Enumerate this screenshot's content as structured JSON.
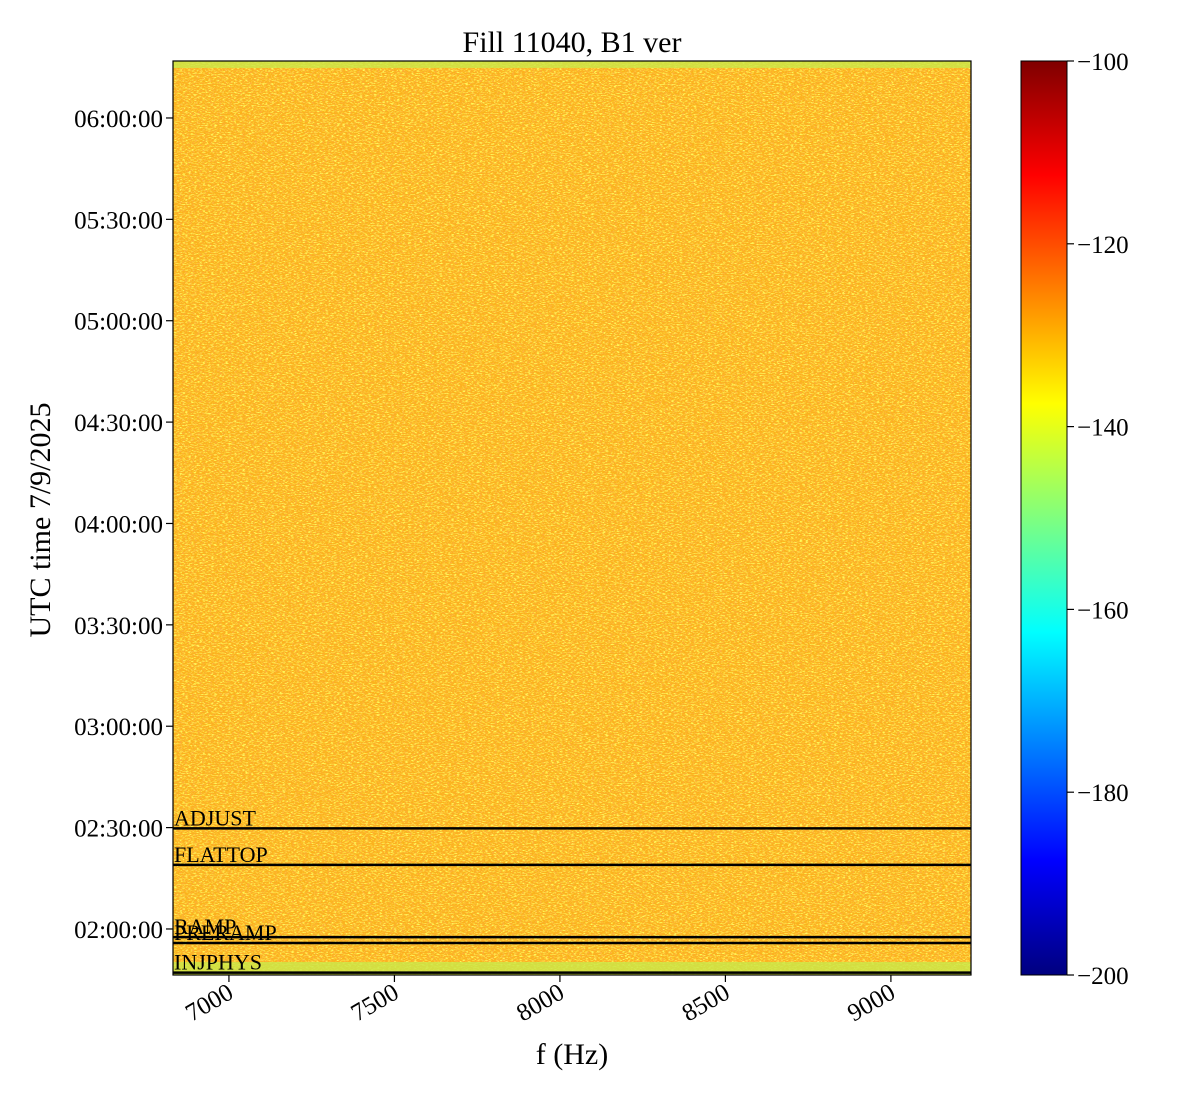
{
  "chart_data": {
    "type": "heatmap",
    "title": "Fill 11040, B1 ver",
    "x_label": "f (Hz)",
    "y_label": "UTC time 7/9/2025",
    "xlim": [
      6831,
      9242
    ],
    "xticks": [
      7000,
      7500,
      8000,
      8500,
      9000
    ],
    "ylim": [
      1.773,
      6.281
    ],
    "yticks": [
      {
        "value": 2.0,
        "label": "02:00:00"
      },
      {
        "value": 2.5,
        "label": "02:30:00"
      },
      {
        "value": 3.0,
        "label": "03:00:00"
      },
      {
        "value": 3.5,
        "label": "03:30:00"
      },
      {
        "value": 4.0,
        "label": "04:00:00"
      },
      {
        "value": 4.5,
        "label": "04:30:00"
      },
      {
        "value": 5.0,
        "label": "05:00:00"
      },
      {
        "value": 5.5,
        "label": "05:30:00"
      },
      {
        "value": 6.0,
        "label": "06:00:00"
      }
    ],
    "colormap": "jet",
    "clim": [
      -200,
      -100
    ],
    "cticks": [
      {
        "value": -200,
        "label": "−200"
      },
      {
        "value": -180,
        "label": "−180"
      },
      {
        "value": -160,
        "label": "−160"
      },
      {
        "value": -140,
        "label": "−140"
      },
      {
        "value": -120,
        "label": "−120"
      },
      {
        "value": -100,
        "label": "−100"
      }
    ],
    "annotations": [
      {
        "label": "ADJUST",
        "y": 2.496
      },
      {
        "label": "FLATTOP",
        "y": 2.316
      },
      {
        "label": "RAMP",
        "y": 1.96
      },
      {
        "label": "PRERAMP",
        "y": 1.931
      },
      {
        "label": "INJPHYS",
        "y": 1.785
      }
    ]
  }
}
